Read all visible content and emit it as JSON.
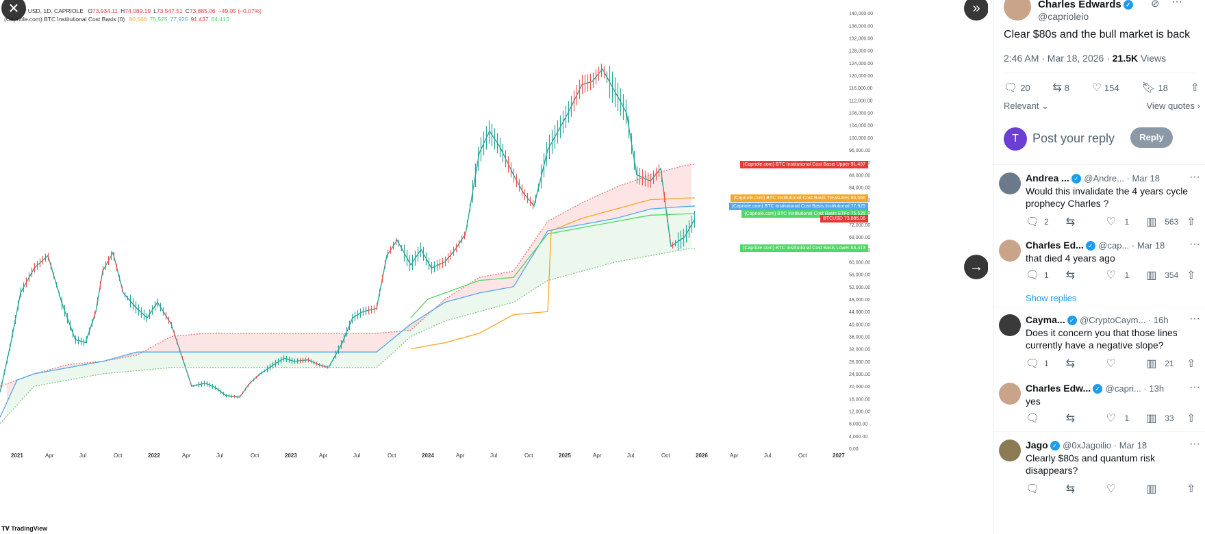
{
  "chart": {
    "legend1_prefix": "/ USD, 1D, CAPRIOLE",
    "ohlc": [
      {
        "label": "O",
        "value": "73,934.11"
      },
      {
        "label": "H",
        "value": "74,089.19"
      },
      {
        "label": "L",
        "value": "73,547.51"
      },
      {
        "label": "C",
        "value": "73,885.06"
      },
      {
        "label": "",
        "value": "−49.05 (−0.07%)"
      }
    ],
    "legend2_label": "(Capriole.com) BTC Institutional Cost Basis (0)",
    "legend2_values": [
      {
        "value": "80,566",
        "color": "#f5a623"
      },
      {
        "value": "75,525",
        "color": "#4cd964"
      },
      {
        "value": "77,925",
        "color": "#4fa8f0"
      },
      {
        "value": "91,437",
        "color": "#e53935"
      },
      {
        "value": "64,413",
        "color": "#4cd964"
      }
    ],
    "tags": [
      {
        "text": "(Capriole.com) BTC Institutional Cost Basis Upper  91,437",
        "color": "#e53935",
        "y": 91437
      },
      {
        "text": "(Capriole.com) BTC Institutional Cost Basis Treasuries  80,566",
        "color": "#f5a623",
        "y": 80566
      },
      {
        "text": "(Capriole.com) BTC Institutional Cost Basis Institutional  77,925",
        "color": "#4fa8f0",
        "y": 77925
      },
      {
        "text": "(Capriole.com) BTC Institutional Cost Basis ETFs  75,525",
        "color": "#4cd964",
        "y": 75525
      },
      {
        "text": "BTCUSD  73,885.06",
        "color": "#e53935",
        "y": 73885
      },
      {
        "text": "(Capriole.com) BTC Institutional Cost Basis Lower  64,413",
        "color": "#4cd964",
        "y": 64413
      }
    ],
    "tv_logo": "TradingView"
  },
  "chart_data": {
    "type": "line",
    "x_ticks": [
      "2021",
      "Apr",
      "Jul",
      "Oct",
      "2022",
      "Apr",
      "Jul",
      "Oct",
      "2023",
      "Apr",
      "Jul",
      "Oct",
      "2024",
      "Apr",
      "Jul",
      "Oct",
      "2025",
      "Apr",
      "Jul",
      "Oct",
      "2026",
      "Apr",
      "Jul",
      "Oct",
      "2027"
    ],
    "y_ticks": [
      "0.00",
      "4,000.00",
      "8,000.00",
      "12,000.00",
      "16,000.00",
      "20,000.00",
      "24,000.00",
      "28,000.00",
      "32,000.00",
      "36,000.00",
      "40,000.00",
      "44,000.00",
      "48,000.00",
      "52,000.00",
      "56,000.00",
      "60,000.00",
      "64,000.00",
      "68,000.00",
      "72,000.00",
      "76,000.00",
      "80,000.00",
      "84,000.00",
      "88,000.00",
      "92,000.00",
      "96,000.00",
      "100,000.00",
      "104,000.00",
      "108,000.00",
      "112,000.00",
      "116,000.00",
      "120,000.00",
      "124,000.00",
      "128,000.00",
      "132,000.00",
      "136,000.00",
      "140,000.00"
    ],
    "ylim": [
      0,
      142000
    ],
    "xlim": [
      0,
      24.6
    ],
    "series": [
      {
        "name": "BTCUSD",
        "color": "#26a69a",
        "x": [
          0,
          0.3,
          0.6,
          1,
          1.4,
          1.8,
          2.2,
          2.5,
          2.8,
          3,
          3.3,
          3.6,
          4,
          4.3,
          4.6,
          5,
          5.3,
          5.6,
          6,
          6.3,
          6.6,
          7,
          7.3,
          7.6,
          8,
          8.3,
          8.6,
          9,
          9.3,
          9.6,
          10,
          10.3,
          10.6,
          11,
          11.3,
          11.6,
          12,
          12.3,
          12.6,
          13,
          13.3,
          13.6,
          14,
          14.3,
          14.6,
          15,
          15.3,
          15.6,
          16,
          16.3,
          16.6,
          17,
          17.3,
          17.6,
          18,
          18.3,
          18.6,
          19,
          19.3,
          19.6,
          20,
          20.3
        ],
        "y": [
          18000,
          33000,
          50000,
          58000,
          62000,
          47000,
          35000,
          34000,
          44000,
          57000,
          63000,
          50000,
          45000,
          42000,
          47000,
          40000,
          30000,
          20000,
          21000,
          19500,
          17000,
          16500,
          21000,
          24000,
          27000,
          29000,
          28000,
          28500,
          27000,
          26000,
          34000,
          42000,
          44000,
          45000,
          62000,
          67000,
          59000,
          64000,
          58000,
          60000,
          64000,
          69000,
          95000,
          102000,
          97000,
          88000,
          82000,
          78000,
          96000,
          102000,
          108000,
          117000,
          118000,
          122000,
          114000,
          108000,
          88000,
          86000,
          90000,
          65000,
          68000,
          73885
        ]
      },
      {
        "name": "Upper",
        "color": "#e57373",
        "x": [
          0,
          1,
          2,
          3,
          4,
          5,
          6,
          7,
          8,
          9,
          10,
          11,
          12,
          13,
          14,
          15,
          16,
          17,
          18,
          19,
          20,
          20.3
        ],
        "y": [
          20000,
          24000,
          27000,
          28000,
          30000,
          36000,
          37000,
          37000,
          37000,
          37000,
          37000,
          37000,
          38000,
          48000,
          55000,
          57000,
          73000,
          79000,
          84000,
          88000,
          91000,
          91437
        ]
      },
      {
        "name": "Treasuries",
        "color": "#f5a623",
        "x": [
          12,
          13,
          14,
          15,
          16,
          16.1,
          17,
          18,
          19,
          20,
          20.3
        ],
        "y": [
          32000,
          34000,
          37000,
          43000,
          44000,
          70000,
          74000,
          77000,
          80000,
          80500,
          80566
        ]
      },
      {
        "name": "Institutional",
        "color": "#4fa8f0",
        "x": [
          0,
          0.5,
          1,
          2,
          3,
          4,
          5,
          6,
          7,
          8,
          9,
          10,
          11,
          12,
          13,
          14,
          15,
          16,
          17,
          18,
          19,
          20,
          20.3
        ],
        "y": [
          10000,
          22000,
          24000,
          26000,
          28000,
          31000,
          31000,
          31000,
          31000,
          31000,
          31000,
          31000,
          31000,
          40000,
          47000,
          50000,
          52000,
          70000,
          72000,
          74000,
          77000,
          77800,
          77925
        ]
      },
      {
        "name": "ETFs",
        "color": "#4cd964",
        "x": [
          12,
          12.5,
          13,
          14,
          15,
          16,
          17,
          18,
          19,
          20,
          20.3
        ],
        "y": [
          42000,
          48000,
          50000,
          54000,
          55000,
          69000,
          71000,
          73000,
          75000,
          75400,
          75525
        ]
      },
      {
        "name": "Lower",
        "color": "#81c784",
        "x": [
          0,
          1,
          2,
          3,
          4,
          5,
          6,
          7,
          8,
          9,
          10,
          11,
          12,
          13,
          14,
          15,
          16,
          17,
          18,
          19,
          20,
          20.3
        ],
        "y": [
          8000,
          20000,
          22000,
          24000,
          25000,
          26000,
          26000,
          26000,
          26000,
          26000,
          26000,
          26000,
          36000,
          41000,
          44000,
          47000,
          54000,
          57000,
          60000,
          62000,
          64000,
          64413
        ]
      }
    ]
  },
  "tweet": {
    "author_name": "Charles Edwards",
    "author_handle": "@caprioleio",
    "text": "Clear $80s and the bull market is back",
    "time": "2:46 AM · Mar 18, 2026 · ",
    "views_count": "21.5K",
    "views_label": " Views",
    "replies": "20",
    "reposts": "8",
    "likes": "154",
    "bookmarks": "18",
    "sort_label": "Relevant",
    "view_quotes": "View quotes",
    "reply_placeholder": "Post your reply",
    "reply_button": "Reply",
    "composer_initial": "T"
  },
  "replies": [
    {
      "name": "Andrea ...",
      "handle": "@Andre...",
      "date": "· Mar 18",
      "text": "Would this invalidate the 4 years cycle prophecy Charles ?",
      "comments": "2",
      "likes": "1",
      "views": "563",
      "avatar": "#6b7a8a"
    },
    {
      "name": "Charles Ed...",
      "handle": "@cap...",
      "date": "· Mar 18",
      "text": "that died 4 years ago",
      "comments": "1",
      "likes": "1",
      "views": "354",
      "avatar": "#c9a38a"
    },
    {
      "name": "Cayma...",
      "handle": "@CryptoCaym...",
      "date": "· 16h",
      "text": "Does it concern you that those lines currently have a negative slope?",
      "comments": "1",
      "likes": "",
      "views": "21",
      "avatar": "#3a3a3a"
    },
    {
      "name": "Charles Edw...",
      "handle": "@capri...",
      "date": "· 13h",
      "text": "yes",
      "comments": "",
      "likes": "1",
      "views": "33",
      "avatar": "#c9a38a"
    },
    {
      "name": "Jago",
      "handle": "@0xJagoilio",
      "date": "· Mar 18",
      "text": "Clearly $80s and quantum risk disappears?",
      "comments": "",
      "likes": "",
      "views": "",
      "avatar": "#8a7b55"
    }
  ],
  "show_replies": "Show replies"
}
